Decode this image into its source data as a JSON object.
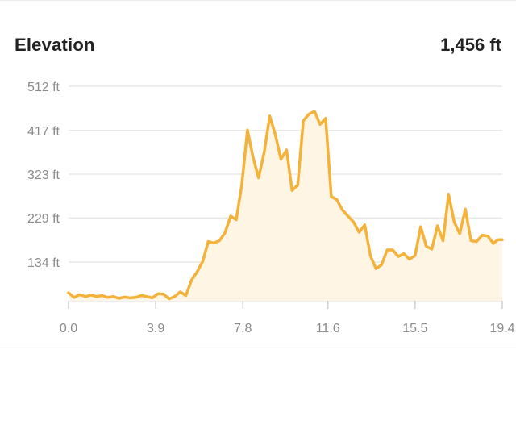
{
  "header": {
    "title": "Elevation",
    "total": "1,456 ft"
  },
  "colors": {
    "line": "#F5B23A",
    "fill": "#FEF5E4",
    "grid": "#E9E9E9",
    "axis_text": "#8A8A8A"
  },
  "chart_data": {
    "type": "area",
    "title": "",
    "xlabel": "",
    "ylabel": "",
    "x_ticks": [
      "0.0",
      "3.9",
      "7.8",
      "11.6",
      "15.5",
      "19.4"
    ],
    "y_ticks": [
      "512 ft",
      "417 ft",
      "323 ft",
      "229 ft",
      "134 ft"
    ],
    "xlim": [
      0,
      19.4
    ],
    "ylim": [
      40,
      512
    ],
    "grid": true,
    "series": [
      {
        "x": [
          0.0,
          0.25,
          0.5,
          0.75,
          1.0,
          1.25,
          1.5,
          1.75,
          2.0,
          2.25,
          2.5,
          2.75,
          3.0,
          3.25,
          3.5,
          3.75,
          4.0,
          4.25,
          4.5,
          4.75,
          5.0,
          5.25,
          5.5,
          5.75,
          6.0,
          6.25,
          6.5,
          6.75,
          7.0,
          7.25,
          7.5,
          7.75,
          8.0,
          8.25,
          8.5,
          8.75,
          9.0,
          9.25,
          9.5,
          9.75,
          10.0,
          10.25,
          10.5,
          10.75,
          11.0,
          11.25,
          11.5,
          11.75,
          12.0,
          12.25,
          12.5,
          12.75,
          13.0,
          13.25,
          13.5,
          13.75,
          14.0,
          14.25,
          14.5,
          14.75,
          15.0,
          15.25,
          15.5,
          15.75,
          16.0,
          16.25,
          16.5,
          16.75,
          17.0,
          17.25,
          17.5,
          17.75,
          18.0,
          18.25,
          18.5,
          18.75,
          19.0,
          19.2,
          19.4
        ],
        "y": [
          68,
          58,
          64,
          60,
          63,
          60,
          62,
          58,
          60,
          56,
          59,
          57,
          58,
          62,
          60,
          57,
          66,
          65,
          55,
          60,
          70,
          62,
          95,
          113,
          135,
          178,
          175,
          180,
          197,
          233,
          225,
          300,
          418,
          360,
          315,
          370,
          448,
          408,
          355,
          375,
          288,
          300,
          438,
          452,
          458,
          430,
          443,
          275,
          268,
          246,
          233,
          220,
          198,
          214,
          148,
          120,
          128,
          160,
          160,
          146,
          152,
          140,
          148,
          210,
          168,
          162,
          212,
          180,
          280,
          220,
          195,
          248,
          180,
          178,
          192,
          190,
          174,
          182,
          182
        ]
      }
    ]
  }
}
